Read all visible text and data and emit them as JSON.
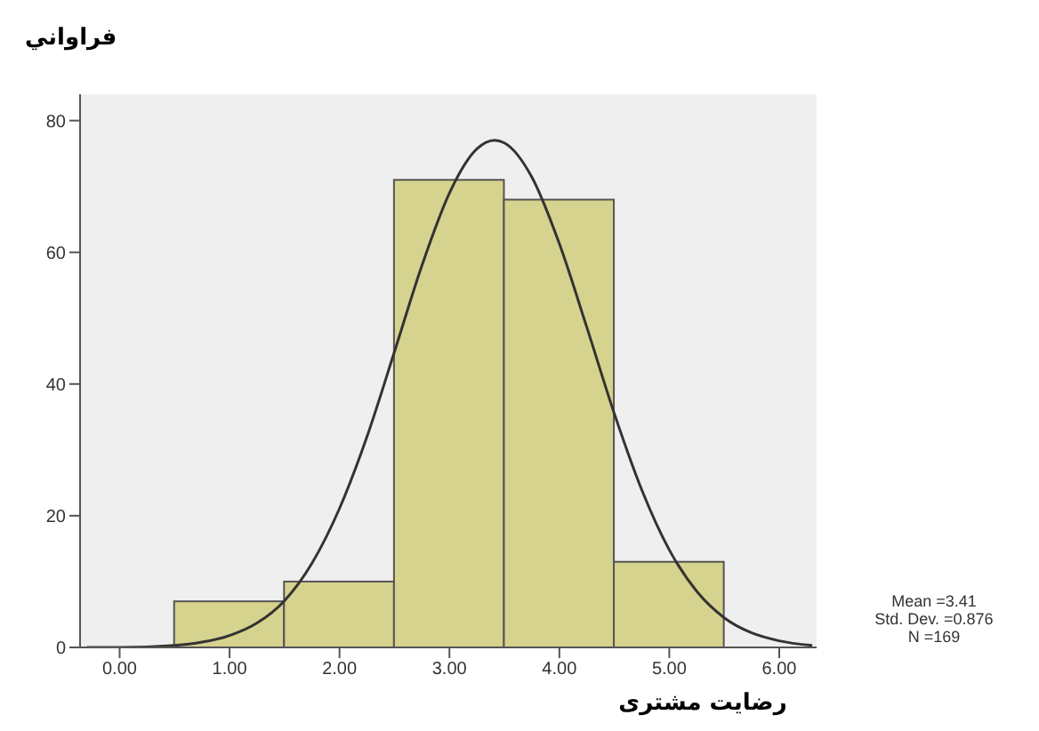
{
  "chart_data": {
    "type": "histogram",
    "ylabel": "فراواني",
    "xlabel": "رضایت مشتری",
    "annotations": [
      "Mean =3.41",
      "Std. Dev. =0.876",
      "N =169"
    ],
    "bins": [
      0.5,
      1.5,
      2.5,
      3.5,
      4.5,
      5.5
    ],
    "values": [
      7,
      10,
      71,
      68,
      13
    ],
    "color": "#d6d38e",
    "series": [
      {
        "type": "line",
        "color": "#333333",
        "marker": "none",
        "x": [
          -0.3,
          0,
          0.5,
          0.75,
          1,
          1.25,
          1.5,
          1.75,
          2,
          2.25,
          2.5,
          2.75,
          3,
          3.25,
          3.41,
          3.5,
          3.75,
          4,
          4.25,
          4.5,
          4.75,
          5,
          5.25,
          5.5,
          5.75,
          6,
          6.3
        ],
        "values": [
          0,
          0,
          0.3,
          0.8,
          1.8,
          3.7,
          7.1,
          12.8,
          21.1,
          32,
          44.9,
          58,
          69,
          75.7,
          77,
          76.6,
          71.4,
          61.3,
          48.6,
          35.5,
          23.9,
          14.8,
          8.5,
          4.5,
          2.2,
          1,
          0.3
        ]
      }
    ],
    "xlim": [
      -0.36,
      6.34
    ],
    "xticks": [
      {
        "value": 0,
        "label": "0.00"
      },
      {
        "value": 1,
        "label": "1.00"
      },
      {
        "value": 2,
        "label": "2.00"
      },
      {
        "value": 3,
        "label": "3.00"
      },
      {
        "value": 4,
        "label": "4.00"
      },
      {
        "value": 5,
        "label": "5.00"
      },
      {
        "value": 6,
        "label": "6.00"
      }
    ],
    "ylim": [
      0,
      84
    ],
    "yticks": [
      0,
      20,
      40,
      60,
      80
    ]
  }
}
